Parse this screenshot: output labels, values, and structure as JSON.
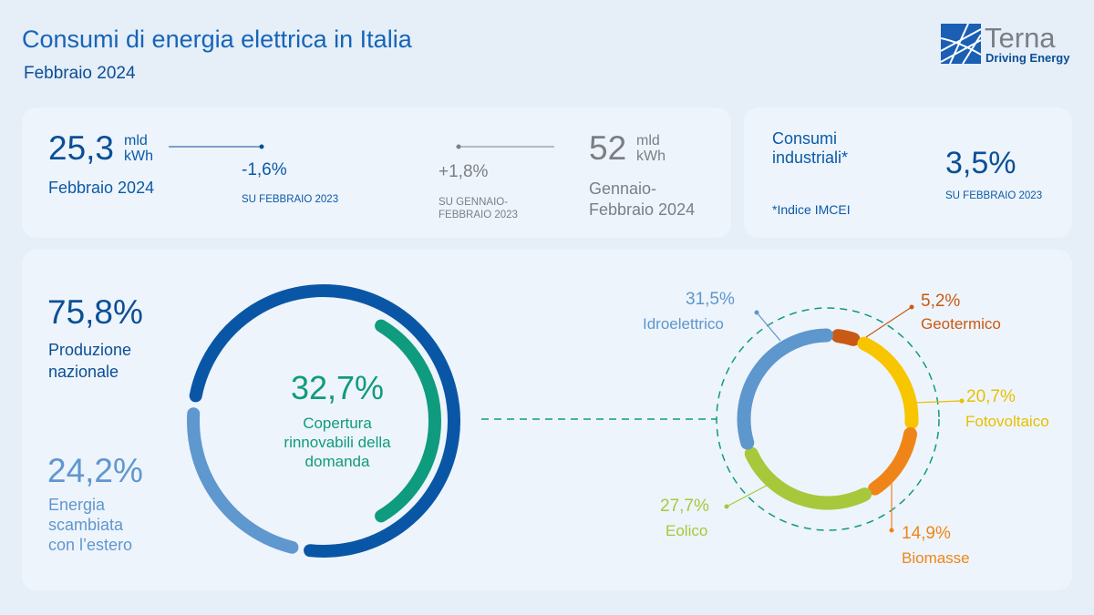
{
  "header": {
    "title": "Consumi di energia elettrica in Italia",
    "subtitle": "Febbraio 2024"
  },
  "logo": {
    "name": "Terna",
    "tagline": "Driving Energy"
  },
  "kpis": {
    "month": {
      "value": "25,3",
      "unit1": "mld",
      "unit2": "kWh",
      "label": "Febbraio 2024",
      "change": "-1,6%",
      "change_label": "SU FEBBRAIO 2023"
    },
    "ytd": {
      "value": "52",
      "unit1": "mld",
      "unit2": "kWh",
      "label1": "Gennaio-",
      "label2": "Febbraio 2024",
      "change": "+1,8%",
      "change_label1": "SU GENNAIO-",
      "change_label2": "FEBBRAIO 2023"
    },
    "industrial": {
      "label1": "Consumi",
      "label2": "industriali*",
      "note": "*Indice IMCEI",
      "value": "3,5%",
      "change_label": "SU FEBBRAIO 2023"
    }
  },
  "chart_data": [
    {
      "type": "pie",
      "variant": "donut",
      "series": [
        {
          "name": "Produzione nazionale",
          "value": 75.8,
          "label": "75,8%",
          "label1": "Produzione",
          "label2": "nazionale",
          "color": "#0a56a6"
        },
        {
          "name": "Energia scambiata con l'estero",
          "value": 24.2,
          "label": "24,2%",
          "label1": "Energia",
          "label2": "scambiata",
          "label3": "con l’estero",
          "color": "#5f97cf"
        }
      ],
      "inner": {
        "value": 32.7,
        "label": "32,7%",
        "text1": "Copertura",
        "text2": "rinnovabili della",
        "text3": "domanda",
        "color": "#0f9b7e"
      }
    },
    {
      "type": "pie",
      "variant": "donut",
      "series": [
        {
          "name": "Geotermico",
          "value": 5.2,
          "label": "5,2%",
          "color": "#c85a14"
        },
        {
          "name": "Fotovoltaico",
          "value": 20.7,
          "label": "20,7%",
          "color": "#f7c600"
        },
        {
          "name": "Biomasse",
          "value": 14.9,
          "label": "14,9%",
          "color": "#ef8519"
        },
        {
          "name": "Eolico",
          "value": 27.7,
          "label": "27,7%",
          "color": "#a7c83b"
        },
        {
          "name": "Idroelettrico",
          "value": 31.5,
          "label": "31,5%",
          "color": "#5d97cd"
        }
      ]
    }
  ]
}
